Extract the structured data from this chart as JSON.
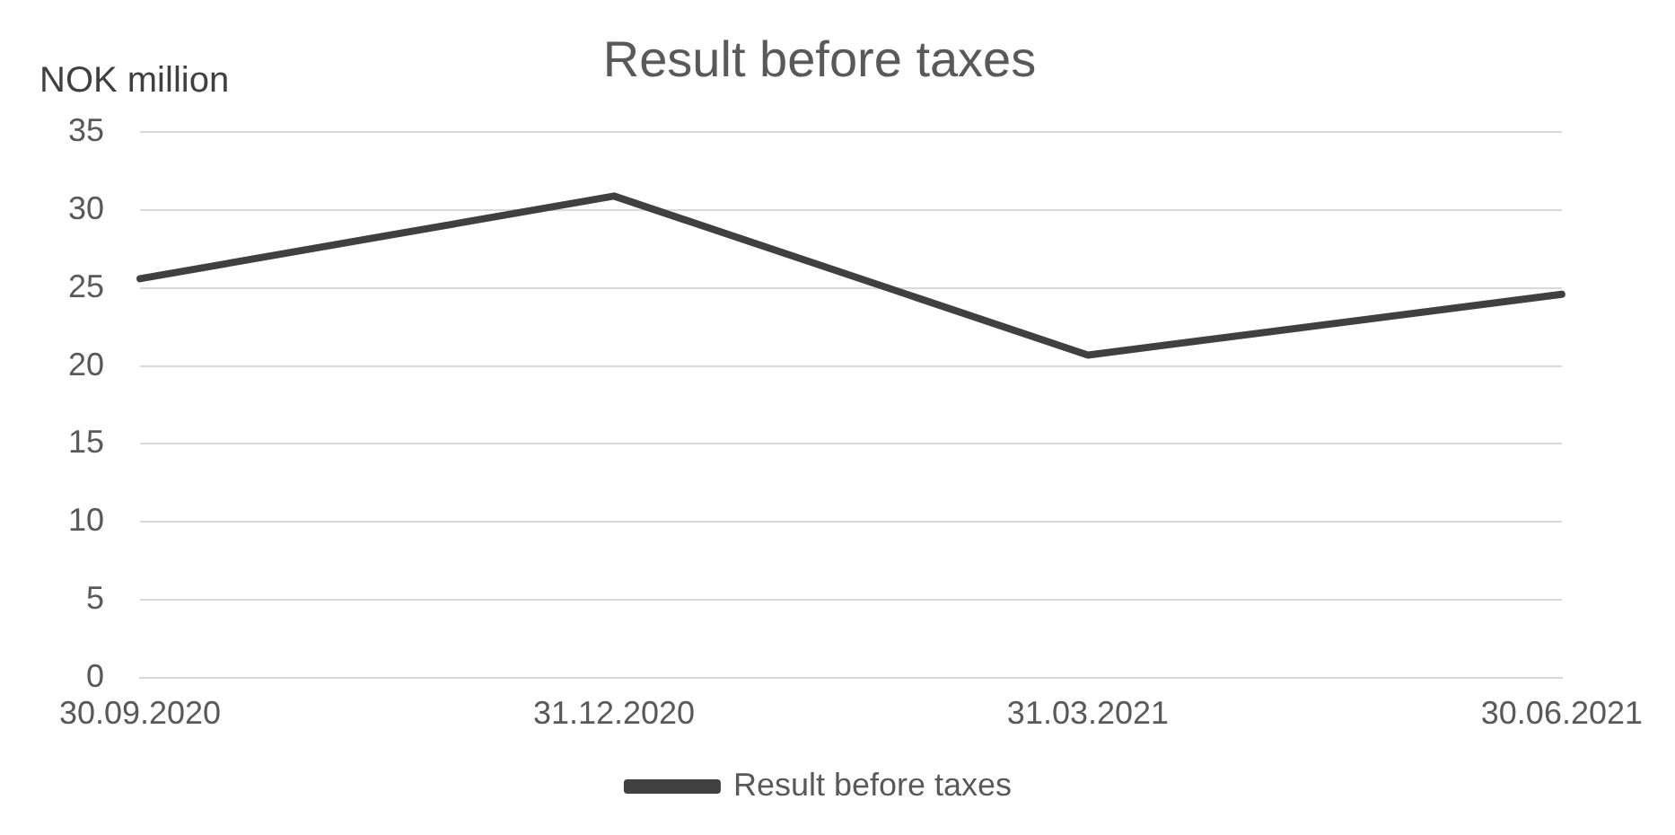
{
  "chart_data": {
    "type": "line",
    "title": "Result before taxes",
    "ylabel": "NOK million",
    "categories": [
      "30.09.2020",
      "31.12.2020",
      "31.03.2021",
      "30.06.2021"
    ],
    "series": [
      {
        "name": "Result before taxes",
        "color": "#404040",
        "values": [
          25.6,
          30.9,
          20.7,
          24.6
        ]
      }
    ],
    "ylim": [
      0,
      35
    ],
    "yticks": [
      0,
      5,
      10,
      15,
      20,
      25,
      30,
      35
    ],
    "grid": "y",
    "legend": "bottom",
    "marker": "none",
    "line_style": "solid"
  }
}
